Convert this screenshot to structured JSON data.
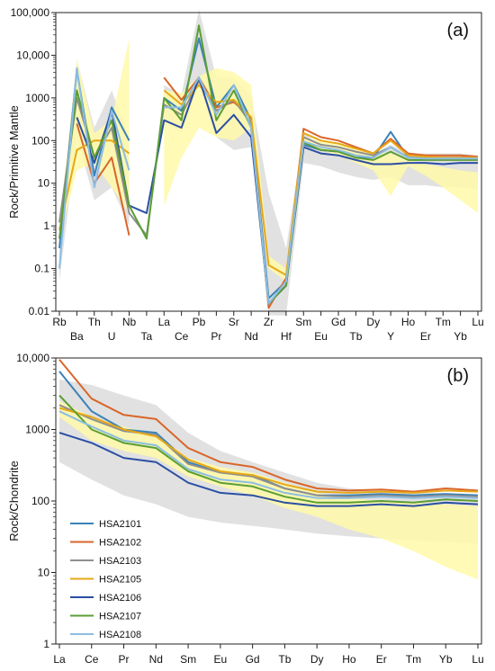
{
  "chart_data": [
    {
      "type": "line",
      "panel_label": "(a)",
      "ylabel": "Rock/Primitive Mantle",
      "yscale": "log",
      "ylim": [
        0.01,
        100000
      ],
      "yticks": [
        "0.01",
        "0.1",
        "1",
        "10",
        "100",
        "1000",
        "10,000",
        "100,000"
      ],
      "categories": [
        "Rb",
        "Ba",
        "Th",
        "U",
        "Nb",
        "Ta",
        "La",
        "Ce",
        "Pb",
        "Pr",
        "Sr",
        "Nd",
        "Zr",
        "Hf",
        "Sm",
        "Eu",
        "Gd",
        "Tb",
        "Dy",
        "Y",
        "Ho",
        "Er",
        "Tm",
        "Yb",
        "Lu"
      ],
      "grid": false,
      "colors": {
        "HSA2101": "#3a82b8",
        "HSA2102": "#d9662a",
        "HSA2103": "#8f8f8f",
        "HSA2105": "#e6a817",
        "HSA2106": "#2b4fa3",
        "HSA2107": "#5a9e34",
        "HSA2108": "#8cbde3",
        "gray_field": "#dcdcdc",
        "yellow_field": "#fff9a8"
      },
      "gray_field": {
        "upper": [
          1.0,
          8000,
          200,
          1500,
          120,
          null,
          2000,
          1200,
          120000,
          3000,
          3000,
          1100,
          6,
          0.3,
          150,
          80,
          70,
          55,
          50,
          80,
          50,
          50,
          50,
          50,
          45
        ],
        "lower": [
          0.05,
          120,
          4,
          8,
          1,
          null,
          300,
          150,
          2000,
          120,
          60,
          70,
          0.008,
          0.008,
          30,
          25,
          18,
          14,
          12,
          14,
          9,
          9,
          8,
          8,
          7
        ]
      },
      "yellow_field": {
        "upper": [
          0.9,
          8000,
          150,
          300,
          25000,
          null,
          1500,
          1300,
          3200,
          5000,
          4000,
          2000,
          0.2,
          0.1,
          120,
          95,
          80,
          65,
          55,
          50,
          35,
          28,
          24,
          20,
          18
        ],
        "lower": [
          0.5,
          20,
          30,
          8,
          2,
          null,
          3,
          40,
          200,
          120,
          100,
          200,
          0.1,
          0.05,
          80,
          60,
          45,
          30,
          20,
          5,
          25,
          15,
          8,
          4,
          2
        ]
      },
      "series": [
        {
          "name": "HSA2101",
          "values": [
            0.3,
            4500,
            15,
            600,
            100,
            null,
            1000,
            500,
            25000,
            600,
            2000,
            300,
            0.02,
            0.05,
            80,
            60,
            55,
            40,
            40,
            160,
            40,
            40,
            40,
            40,
            40
          ]
        },
        {
          "name": "HSA2102",
          "values": [
            null,
            250,
            10,
            40,
            0.6,
            null,
            3000,
            900,
            3000,
            600,
            800,
            350,
            0.012,
            0.06,
            190,
            120,
            100,
            70,
            50,
            110,
            50,
            45,
            45,
            45,
            42
          ]
        },
        {
          "name": "HSA2103",
          "values": [
            1.2,
            1000,
            40,
            200,
            2,
            0.6,
            700,
            400,
            2500,
            500,
            900,
            250,
            0.015,
            0.04,
            120,
            80,
            70,
            55,
            45,
            70,
            40,
            40,
            38,
            40,
            38
          ]
        },
        {
          "name": "HSA2105",
          "values": [
            0.8,
            60,
            100,
            100,
            50,
            null,
            1500,
            700,
            2000,
            800,
            900,
            350,
            0.12,
            0.07,
            150,
            100,
            85,
            65,
            50,
            100,
            45,
            42,
            40,
            40,
            40
          ]
        },
        {
          "name": "HSA2106",
          "values": [
            null,
            350,
            30,
            500,
            3,
            2,
            300,
            200,
            3000,
            150,
            400,
            120,
            0.015,
            0.04,
            70,
            50,
            45,
            35,
            28,
            28,
            30,
            30,
            28,
            30,
            30
          ]
        },
        {
          "name": "HSA2107",
          "values": [
            0.5,
            1500,
            40,
            300,
            3,
            0.5,
            1000,
            300,
            50000,
            300,
            1500,
            200,
            0.015,
            0.04,
            90,
            60,
            55,
            40,
            35,
            55,
            35,
            35,
            35,
            35,
            35
          ]
        },
        {
          "name": "HSA2108",
          "values": [
            0.1,
            5000,
            8,
            500,
            20,
            null,
            600,
            600,
            3000,
            400,
            2000,
            200,
            0.015,
            0.05,
            95,
            70,
            60,
            45,
            40,
            70,
            40,
            38,
            38,
            38,
            38
          ]
        }
      ]
    },
    {
      "type": "line",
      "panel_label": "(b)",
      "ylabel": "Rock/Chondrite",
      "yscale": "log",
      "ylim": [
        1,
        10000
      ],
      "yticks": [
        "1",
        "10",
        "100",
        "1000",
        "10,000"
      ],
      "categories": [
        "La",
        "Ce",
        "Pr",
        "Nd",
        "Sm",
        "Eu",
        "Gd",
        "Tb",
        "Dy",
        "Ho",
        "Er",
        "Tm",
        "Yb",
        "Lu"
      ],
      "grid": false,
      "legend_position": "lower-left",
      "gray_field": {
        "upper": [
          5000,
          4200,
          3000,
          2200,
          900,
          500,
          350,
          250,
          180,
          150,
          140,
          130,
          130,
          125
        ],
        "lower": [
          350,
          200,
          120,
          90,
          60,
          50,
          45,
          40,
          35,
          32,
          30,
          28,
          27,
          25
        ]
      },
      "yellow_field": {
        "upper": [
          2500,
          1500,
          1100,
          850,
          400,
          300,
          250,
          180,
          130,
          110,
          100,
          95,
          90,
          85
        ],
        "lower": [
          1500,
          700,
          500,
          400,
          220,
          160,
          120,
          80,
          60,
          40,
          30,
          20,
          12,
          8
        ]
      },
      "series": [
        {
          "name": "HSA2101",
          "values": [
            6500,
            1800,
            1000,
            900,
            350,
            250,
            230,
            150,
            120,
            120,
            125,
            120,
            125,
            120
          ]
        },
        {
          "name": "HSA2102",
          "values": [
            9500,
            2700,
            1600,
            1400,
            550,
            350,
            300,
            200,
            150,
            140,
            145,
            135,
            150,
            140
          ]
        },
        {
          "name": "HSA2103",
          "values": [
            2200,
            1400,
            950,
            850,
            330,
            250,
            220,
            150,
            120,
            115,
            120,
            115,
            120,
            115
          ]
        },
        {
          "name": "HSA2105",
          "values": [
            2000,
            1500,
            1000,
            800,
            380,
            260,
            230,
            170,
            135,
            130,
            135,
            130,
            140,
            135
          ]
        },
        {
          "name": "HSA2106",
          "values": [
            900,
            650,
            400,
            350,
            180,
            130,
            120,
            95,
            85,
            85,
            90,
            85,
            95,
            90
          ]
        },
        {
          "name": "HSA2107",
          "values": [
            3000,
            1000,
            650,
            550,
            260,
            180,
            160,
            115,
            95,
            95,
            100,
            95,
            105,
            100
          ]
        },
        {
          "name": "HSA2108",
          "values": [
            1800,
            1100,
            700,
            600,
            280,
            200,
            180,
            130,
            110,
            110,
            115,
            110,
            115,
            110
          ]
        }
      ]
    }
  ]
}
